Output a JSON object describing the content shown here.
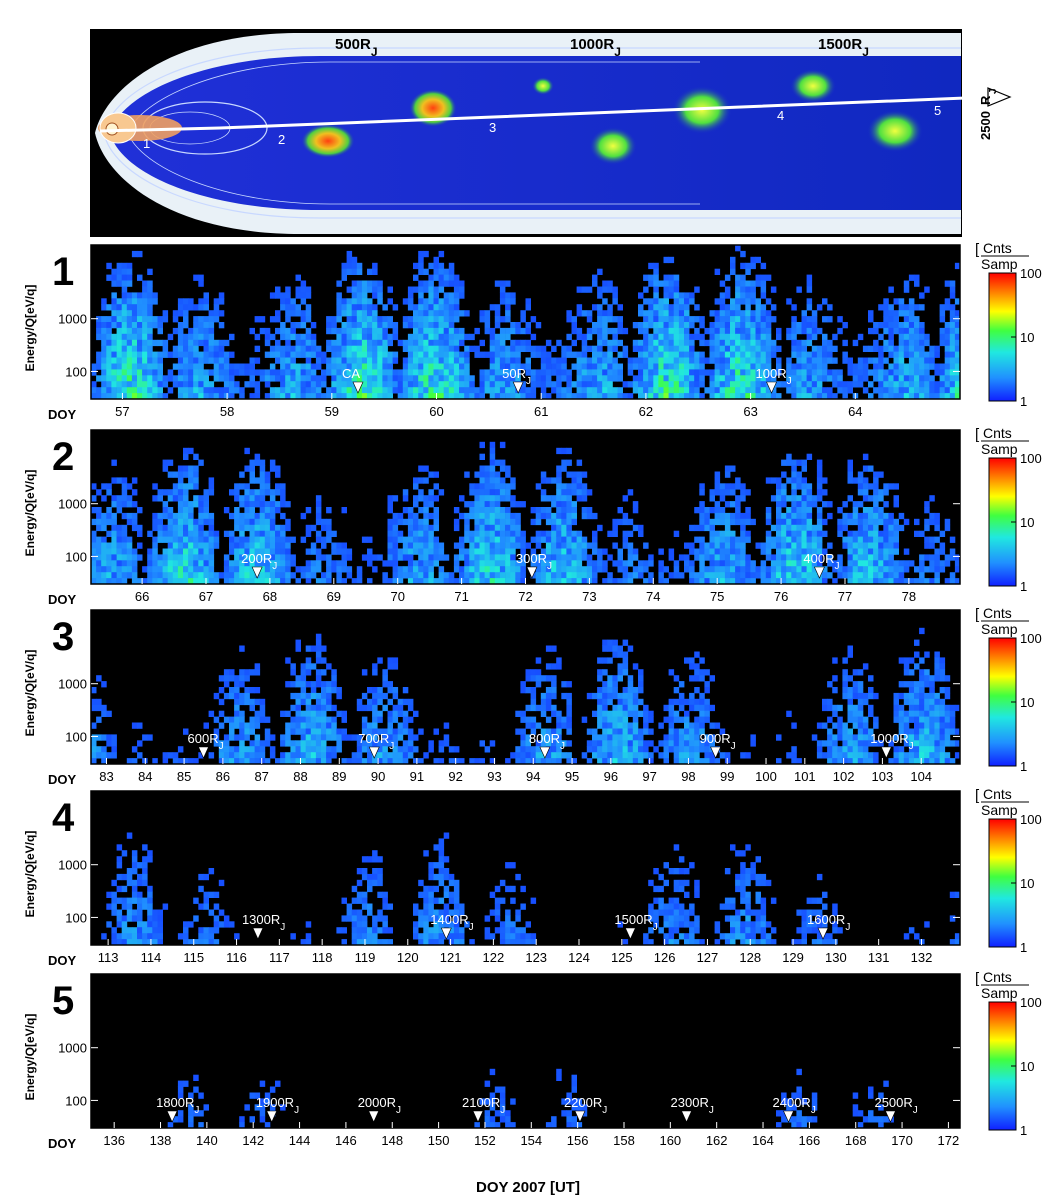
{
  "colors": {
    "background": "#ffffff",
    "sheath": "#e9f1f7",
    "magnetosphere": "#1428c8",
    "spectrogram_bg": "#000000"
  },
  "diagram": {
    "distance_labels": [
      "500R",
      "1000R",
      "1500R"
    ],
    "subscript": "J",
    "end_label": "2500",
    "end_sub": "R",
    "end_sub2": "J",
    "segment_numbers": [
      "1",
      "2",
      "3",
      "4",
      "5"
    ]
  },
  "ylabel": "Energy/Q[eV/q]",
  "colorbar": {
    "title_top": "Cnts",
    "title_bottom": "Samp",
    "ticks": [
      "100",
      "10",
      "1"
    ]
  },
  "doy_label": "DOY",
  "xaxis_title": "DOY 2007 [UT]",
  "chart_data": [
    {
      "type": "heatmap",
      "panel": "1",
      "yscale": "log",
      "yticks": [
        "1000",
        "100"
      ],
      "ylim": [
        30,
        25000
      ],
      "xlim": [
        56.7,
        65.0
      ],
      "xticks": [
        "57",
        "58",
        "59",
        "60",
        "61",
        "62",
        "63",
        "64"
      ],
      "markers": [
        {
          "label": "CA",
          "sub": "",
          "doy": 59.25
        },
        {
          "label": "50R",
          "sub": "J",
          "doy": 60.78
        },
        {
          "label": "100R",
          "sub": "J",
          "doy": 63.2
        }
      ],
      "zlim": [
        1,
        100
      ]
    },
    {
      "type": "heatmap",
      "panel": "2",
      "yscale": "log",
      "yticks": [
        "1000",
        "100"
      ],
      "ylim": [
        30,
        25000
      ],
      "xlim": [
        65.2,
        78.8
      ],
      "xticks": [
        "66",
        "67",
        "68",
        "69",
        "70",
        "71",
        "72",
        "73",
        "74",
        "75",
        "76",
        "77",
        "78"
      ],
      "markers": [
        {
          "label": "200R",
          "sub": "J",
          "doy": 67.8
        },
        {
          "label": "300R",
          "sub": "J",
          "doy": 72.1
        },
        {
          "label": "400R",
          "sub": "J",
          "doy": 76.6
        }
      ],
      "zlim": [
        1,
        100
      ]
    },
    {
      "type": "heatmap",
      "panel": "3",
      "yscale": "log",
      "yticks": [
        "1000",
        "100"
      ],
      "ylim": [
        30,
        25000
      ],
      "xlim": [
        82.6,
        105.0
      ],
      "xticks": [
        "83",
        "84",
        "85",
        "86",
        "87",
        "88",
        "89",
        "90",
        "91",
        "92",
        "93",
        "94",
        "95",
        "96",
        "97",
        "98",
        "99",
        "100",
        "101",
        "102",
        "103",
        "104"
      ],
      "markers": [
        {
          "label": "600R",
          "sub": "J",
          "doy": 85.5
        },
        {
          "label": "700R",
          "sub": "J",
          "doy": 89.9
        },
        {
          "label": "800R",
          "sub": "J",
          "doy": 94.3
        },
        {
          "label": "900R",
          "sub": "J",
          "doy": 98.7
        },
        {
          "label": "1000R",
          "sub": "J",
          "doy": 103.1
        }
      ],
      "zlim": [
        1,
        100
      ]
    },
    {
      "type": "heatmap",
      "panel": "4",
      "yscale": "log",
      "yticks": [
        "1000",
        "100"
      ],
      "ylim": [
        30,
        25000
      ],
      "xlim": [
        112.6,
        132.9
      ],
      "xticks": [
        "113",
        "114",
        "115",
        "116",
        "117",
        "118",
        "119",
        "120",
        "121",
        "122",
        "123",
        "124",
        "125",
        "126",
        "127",
        "128",
        "129",
        "130",
        "131",
        "132"
      ],
      "markers": [
        {
          "label": "1300R",
          "sub": "J",
          "doy": 116.5
        },
        {
          "label": "1400R",
          "sub": "J",
          "doy": 120.9
        },
        {
          "label": "1500R",
          "sub": "J",
          "doy": 125.2
        },
        {
          "label": "1600R",
          "sub": "J",
          "doy": 129.7
        }
      ],
      "zlim": [
        1,
        100
      ]
    },
    {
      "type": "heatmap",
      "panel": "5",
      "yscale": "log",
      "yticks": [
        "1000",
        "100"
      ],
      "ylim": [
        30,
        25000
      ],
      "xlim": [
        135.0,
        172.5
      ],
      "xticks": [
        "136",
        "138",
        "140",
        "142",
        "144",
        "146",
        "148",
        "150",
        "152",
        "154",
        "156",
        "158",
        "160",
        "162",
        "164",
        "166",
        "168",
        "170",
        "172"
      ],
      "markers": [
        {
          "label": "1800R",
          "sub": "J",
          "doy": 138.5
        },
        {
          "label": "1900R",
          "sub": "J",
          "doy": 142.8
        },
        {
          "label": "2000R",
          "sub": "J",
          "doy": 147.2
        },
        {
          "label": "2100R",
          "sub": "J",
          "doy": 151.7
        },
        {
          "label": "2200R",
          "sub": "J",
          "doy": 156.1
        },
        {
          "label": "2300R",
          "sub": "J",
          "doy": 160.7
        },
        {
          "label": "2400R",
          "sub": "J",
          "doy": 165.1
        },
        {
          "label": "2500R",
          "sub": "J",
          "doy": 169.5
        }
      ],
      "zlim": [
        1,
        100
      ]
    }
  ]
}
